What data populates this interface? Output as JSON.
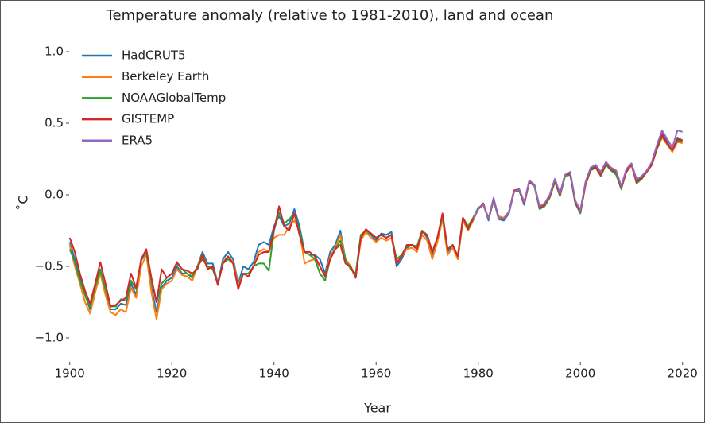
{
  "chart_data": {
    "type": "line",
    "title": "Temperature anomaly (relative to 1981-2010), land and ocean",
    "xlabel": "Year",
    "ylabel": "˚C",
    "xlim": [
      1896,
      2023
    ],
    "xticks": [
      1900,
      1920,
      1940,
      1960,
      1980,
      2000,
      2020
    ],
    "ylim": [
      -1.15,
      1.1
    ],
    "yticks": [
      {
        "value": -1.0,
        "label": "−1.0"
      },
      {
        "value": -0.5,
        "label": "−0.5"
      },
      {
        "value": 0.0,
        "label": "0.0"
      },
      0.5,
      {
        "value": 1.0,
        "label": "1.0"
      }
    ],
    "legend": "upper left",
    "grid": false,
    "x": [
      1900,
      1901,
      1902,
      1903,
      1904,
      1905,
      1906,
      1907,
      1908,
      1909,
      1910,
      1911,
      1912,
      1913,
      1914,
      1915,
      1916,
      1917,
      1918,
      1919,
      1920,
      1921,
      1922,
      1923,
      1924,
      1925,
      1926,
      1927,
      1928,
      1929,
      1930,
      1931,
      1932,
      1933,
      1934,
      1935,
      1936,
      1937,
      1938,
      1939,
      1940,
      1941,
      1942,
      1943,
      1944,
      1945,
      1946,
      1947,
      1948,
      1949,
      1950,
      1951,
      1952,
      1953,
      1954,
      1955,
      1956,
      1957,
      1958,
      1959,
      1960,
      1961,
      1962,
      1963,
      1964,
      1965,
      1966,
      1967,
      1968,
      1969,
      1970,
      1971,
      1972,
      1973,
      1974,
      1975,
      1976,
      1977,
      1978,
      1979,
      1980,
      1981,
      1982,
      1983,
      1984,
      1985,
      1986,
      1987,
      1988,
      1989,
      1990,
      1991,
      1992,
      1993,
      1994,
      1995,
      1996,
      1997,
      1998,
      1999,
      2000,
      2001,
      2002,
      2003,
      2004,
      2005,
      2006,
      2007,
      2008,
      2009,
      2010,
      2011,
      2012,
      2013,
      2014,
      2015,
      2016,
      2017,
      2018,
      2019,
      2020
    ],
    "series": [
      {
        "name": "HadCRUT5",
        "color": "#1f77b4",
        "values": [
          -0.33,
          -0.45,
          -0.58,
          -0.7,
          -0.8,
          -0.65,
          -0.52,
          -0.68,
          -0.8,
          -0.8,
          -0.76,
          -0.77,
          -0.62,
          -0.7,
          -0.46,
          -0.4,
          -0.65,
          -0.82,
          -0.65,
          -0.6,
          -0.58,
          -0.5,
          -0.55,
          -0.55,
          -0.58,
          -0.5,
          -0.4,
          -0.48,
          -0.48,
          -0.62,
          -0.45,
          -0.4,
          -0.45,
          -0.62,
          -0.5,
          -0.52,
          -0.47,
          -0.35,
          -0.33,
          -0.35,
          -0.22,
          -0.15,
          -0.22,
          -0.2,
          -0.1,
          -0.22,
          -0.4,
          -0.42,
          -0.42,
          -0.45,
          -0.55,
          -0.4,
          -0.35,
          -0.25,
          -0.45,
          -0.5,
          -0.58,
          -0.3,
          -0.25,
          -0.28,
          -0.32,
          -0.27,
          -0.28,
          -0.26,
          -0.5,
          -0.45,
          -0.37,
          -0.35,
          -0.38,
          -0.25,
          -0.3,
          -0.42,
          -0.3,
          -0.15,
          -0.4,
          -0.35,
          -0.45,
          -0.17,
          -0.25,
          -0.17,
          -0.1,
          -0.06,
          -0.18,
          -0.03,
          -0.17,
          -0.18,
          -0.13,
          0.02,
          0.03,
          -0.07,
          0.1,
          0.07,
          -0.09,
          -0.07,
          -0.01,
          0.1,
          0.0,
          0.14,
          0.15,
          -0.05,
          -0.12,
          0.08,
          0.18,
          0.2,
          0.14,
          0.22,
          0.18,
          0.15,
          0.05,
          0.17,
          0.22,
          0.1,
          0.12,
          0.17,
          0.22,
          0.33,
          0.43,
          0.37,
          0.3,
          0.4,
          0.38
        ]
      },
      {
        "name": "Berkeley Earth",
        "color": "#ff7f0e",
        "values": [
          -0.35,
          -0.5,
          -0.62,
          -0.75,
          -0.83,
          -0.68,
          -0.55,
          -0.7,
          -0.82,
          -0.84,
          -0.8,
          -0.82,
          -0.65,
          -0.72,
          -0.5,
          -0.42,
          -0.68,
          -0.87,
          -0.66,
          -0.62,
          -0.6,
          -0.52,
          -0.56,
          -0.57,
          -0.6,
          -0.5,
          -0.42,
          -0.5,
          -0.5,
          -0.63,
          -0.47,
          -0.43,
          -0.47,
          -0.63,
          -0.55,
          -0.55,
          -0.5,
          -0.4,
          -0.38,
          -0.4,
          -0.3,
          -0.28,
          -0.28,
          -0.22,
          -0.18,
          -0.25,
          -0.48,
          -0.46,
          -0.45,
          -0.5,
          -0.57,
          -0.43,
          -0.37,
          -0.28,
          -0.45,
          -0.5,
          -0.57,
          -0.32,
          -0.26,
          -0.3,
          -0.33,
          -0.3,
          -0.32,
          -0.3,
          -0.47,
          -0.43,
          -0.38,
          -0.37,
          -0.4,
          -0.28,
          -0.32,
          -0.45,
          -0.33,
          -0.17,
          -0.42,
          -0.37,
          -0.45,
          -0.18,
          -0.25,
          -0.18,
          -0.1,
          -0.07,
          -0.16,
          -0.04,
          -0.15,
          -0.16,
          -0.12,
          0.03,
          0.04,
          -0.05,
          0.09,
          0.06,
          -0.08,
          -0.06,
          0.0,
          0.11,
          0.01,
          0.13,
          0.16,
          -0.06,
          -0.1,
          0.07,
          0.17,
          0.19,
          0.15,
          0.21,
          0.19,
          0.16,
          0.06,
          0.16,
          0.21,
          0.09,
          0.11,
          0.16,
          0.21,
          0.32,
          0.4,
          0.35,
          0.3,
          0.37,
          0.36
        ]
      },
      {
        "name": "NOAAGlobalTemp",
        "color": "#2ca02c",
        "values": [
          -0.38,
          -0.47,
          -0.6,
          -0.7,
          -0.78,
          -0.64,
          -0.53,
          -0.66,
          -0.78,
          -0.78,
          -0.73,
          -0.74,
          -0.6,
          -0.66,
          -0.45,
          -0.4,
          -0.6,
          -0.75,
          -0.62,
          -0.58,
          -0.55,
          -0.48,
          -0.52,
          -0.55,
          -0.57,
          -0.5,
          -0.45,
          -0.5,
          -0.52,
          -0.62,
          -0.48,
          -0.45,
          -0.48,
          -0.65,
          -0.55,
          -0.55,
          -0.5,
          -0.48,
          -0.48,
          -0.53,
          -0.25,
          -0.12,
          -0.2,
          -0.17,
          -0.13,
          -0.25,
          -0.4,
          -0.42,
          -0.45,
          -0.55,
          -0.6,
          -0.45,
          -0.38,
          -0.32,
          -0.45,
          -0.52,
          -0.55,
          -0.28,
          -0.25,
          -0.27,
          -0.3,
          -0.28,
          -0.3,
          -0.28,
          -0.45,
          -0.42,
          -0.36,
          -0.35,
          -0.36,
          -0.25,
          -0.28,
          -0.4,
          -0.3,
          -0.15,
          -0.38,
          -0.35,
          -0.43,
          -0.16,
          -0.22,
          -0.16,
          -0.09,
          -0.07,
          -0.17,
          -0.04,
          -0.16,
          -0.17,
          -0.12,
          0.02,
          0.03,
          -0.06,
          0.09,
          0.06,
          -0.1,
          -0.08,
          -0.02,
          0.09,
          -0.01,
          0.13,
          0.14,
          -0.06,
          -0.13,
          0.07,
          0.17,
          0.19,
          0.13,
          0.21,
          0.17,
          0.14,
          0.04,
          0.16,
          0.21,
          0.08,
          0.11,
          0.16,
          0.21,
          0.32,
          0.41,
          0.36,
          0.31,
          0.38,
          0.37
        ]
      },
      {
        "name": "GISTEMP",
        "color": "#d62728",
        "values": [
          -0.3,
          -0.4,
          -0.55,
          -0.67,
          -0.76,
          -0.62,
          -0.47,
          -0.62,
          -0.78,
          -0.77,
          -0.74,
          -0.72,
          -0.55,
          -0.65,
          -0.45,
          -0.38,
          -0.58,
          -0.75,
          -0.52,
          -0.58,
          -0.55,
          -0.47,
          -0.52,
          -0.53,
          -0.55,
          -0.52,
          -0.42,
          -0.52,
          -0.5,
          -0.63,
          -0.48,
          -0.43,
          -0.48,
          -0.66,
          -0.55,
          -0.57,
          -0.5,
          -0.42,
          -0.4,
          -0.4,
          -0.25,
          -0.08,
          -0.22,
          -0.25,
          -0.13,
          -0.28,
          -0.4,
          -0.4,
          -0.43,
          -0.5,
          -0.57,
          -0.45,
          -0.38,
          -0.35,
          -0.48,
          -0.5,
          -0.58,
          -0.3,
          -0.24,
          -0.27,
          -0.3,
          -0.28,
          -0.3,
          -0.28,
          -0.48,
          -0.43,
          -0.35,
          -0.35,
          -0.38,
          -0.26,
          -0.28,
          -0.4,
          -0.3,
          -0.13,
          -0.38,
          -0.35,
          -0.43,
          -0.16,
          -0.24,
          -0.17,
          -0.1,
          -0.06,
          -0.17,
          -0.03,
          -0.16,
          -0.17,
          -0.12,
          0.03,
          0.04,
          -0.06,
          0.09,
          0.07,
          -0.09,
          -0.07,
          -0.01,
          0.1,
          0.0,
          0.14,
          0.15,
          -0.05,
          -0.12,
          0.07,
          0.18,
          0.19,
          0.14,
          0.22,
          0.18,
          0.16,
          0.05,
          0.16,
          0.21,
          0.09,
          0.12,
          0.16,
          0.21,
          0.33,
          0.42,
          0.36,
          0.31,
          0.39,
          0.38
        ]
      },
      {
        "name": "ERA5",
        "color": "#9467bd",
        "values": [
          null,
          null,
          null,
          null,
          null,
          null,
          null,
          null,
          null,
          null,
          null,
          null,
          null,
          null,
          null,
          null,
          null,
          null,
          null,
          null,
          null,
          null,
          null,
          null,
          null,
          null,
          null,
          null,
          null,
          null,
          null,
          null,
          null,
          null,
          null,
          null,
          null,
          null,
          null,
          null,
          null,
          null,
          null,
          null,
          null,
          null,
          null,
          null,
          null,
          null,
          null,
          null,
          null,
          null,
          null,
          null,
          null,
          null,
          null,
          null,
          null,
          null,
          null,
          null,
          null,
          null,
          null,
          null,
          null,
          null,
          null,
          null,
          null,
          null,
          null,
          null,
          null,
          null,
          null,
          -0.17,
          -0.1,
          -0.07,
          -0.17,
          -0.02,
          -0.16,
          -0.17,
          -0.12,
          0.02,
          0.04,
          -0.05,
          0.1,
          0.07,
          -0.08,
          -0.06,
          0.0,
          0.11,
          0.01,
          0.14,
          0.16,
          -0.04,
          -0.11,
          0.09,
          0.19,
          0.21,
          0.16,
          0.23,
          0.19,
          0.17,
          0.06,
          0.18,
          0.22,
          0.11,
          0.13,
          0.17,
          0.23,
          0.35,
          0.45,
          0.39,
          0.33,
          0.45,
          0.44
        ]
      }
    ]
  }
}
